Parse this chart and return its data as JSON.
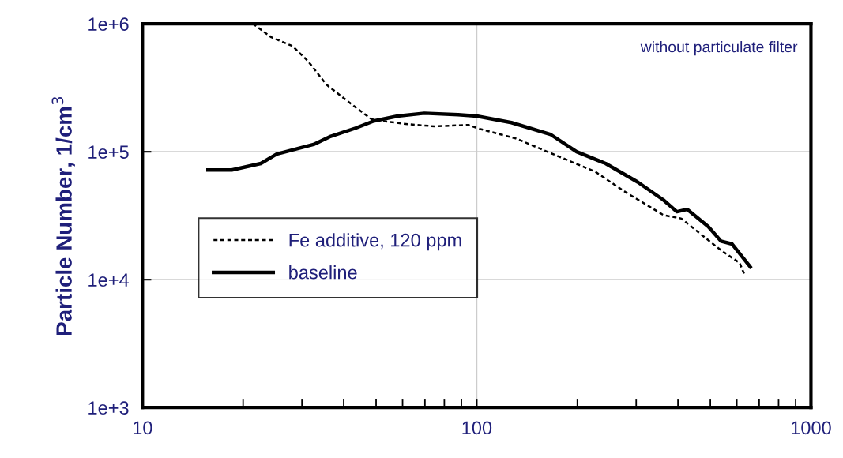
{
  "chart_data": {
    "type": "line",
    "ylabel": "Particle Number, 1/cm$^{3}$",
    "log": "xy",
    "grid": true,
    "legend": "center left",
    "annotations": [
      "without particulate filter"
    ],
    "xlim": [
      10,
      1000
    ],
    "xticks": [
      10,
      100,
      1000
    ],
    "ylim": [
      1000,
      1000000
    ],
    "yticks": [
      {
        "value": 1000,
        "label": "1e+3"
      },
      {
        "value": 10000,
        "label": "1e+4"
      },
      {
        "value": 100000,
        "label": "1e+5"
      },
      {
        "value": 1000000,
        "label": "1e+6"
      }
    ],
    "series": [
      {
        "name": "Fe additive, 120 ppm",
        "color": "#000000",
        "line_style": "dashed",
        "x": [
          21.4,
          24.3,
          28.1,
          31.3,
          35.5,
          41.8,
          48.4,
          52,
          62.5,
          74.8,
          94.4,
          102,
          131,
          181,
          226,
          280,
          362,
          410,
          475,
          538,
          612,
          632
        ],
        "values": [
          1000000,
          785000,
          670000,
          510000,
          335000,
          240000,
          180000,
          174000,
          164000,
          158000,
          162000,
          151000,
          127000,
          89000,
          70000,
          48000,
          32000,
          30000,
          22000,
          17000,
          13500,
          11000
        ]
      },
      {
        "name": "baseline",
        "color": "#000000",
        "line_style": "solid",
        "x": [
          15.7,
          18.5,
          22.6,
          25.2,
          32.5,
          36.3,
          43.4,
          49.2,
          58,
          69.7,
          88,
          100,
          127,
          166,
          199,
          243,
          303,
          362,
          397,
          426,
          493,
          538,
          581,
          658
        ],
        "values": [
          72000,
          72000,
          81000,
          96000,
          114000,
          131000,
          153000,
          174000,
          190000,
          200000,
          195000,
          190000,
          169000,
          137000,
          100000,
          81000,
          58000,
          42000,
          34000,
          35500,
          26000,
          20000,
          19000,
          12600
        ]
      }
    ]
  }
}
